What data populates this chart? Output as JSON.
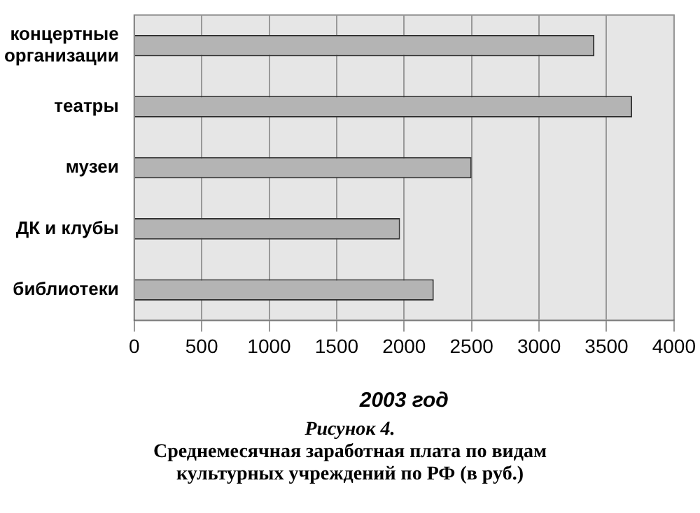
{
  "chart_data": {
    "type": "bar",
    "orientation": "horizontal",
    "title": "Рисунок 4.",
    "subtitle": "Среднемесячная заработная плата по видам культурных учреждений по РФ (в руб.)",
    "xlabel": "2003 год",
    "categories": [
      "концертные организации",
      "театры",
      "музеи",
      "ДК и клубы",
      "библиотеки"
    ],
    "values": [
      3410,
      3690,
      2500,
      1970,
      2220
    ],
    "color": "#b4b4b4",
    "xlim": [
      0,
      4000
    ],
    "xticks": [
      0,
      500,
      1000,
      1500,
      2000,
      2500,
      3000,
      3500,
      4000
    ],
    "grid": "x"
  }
}
